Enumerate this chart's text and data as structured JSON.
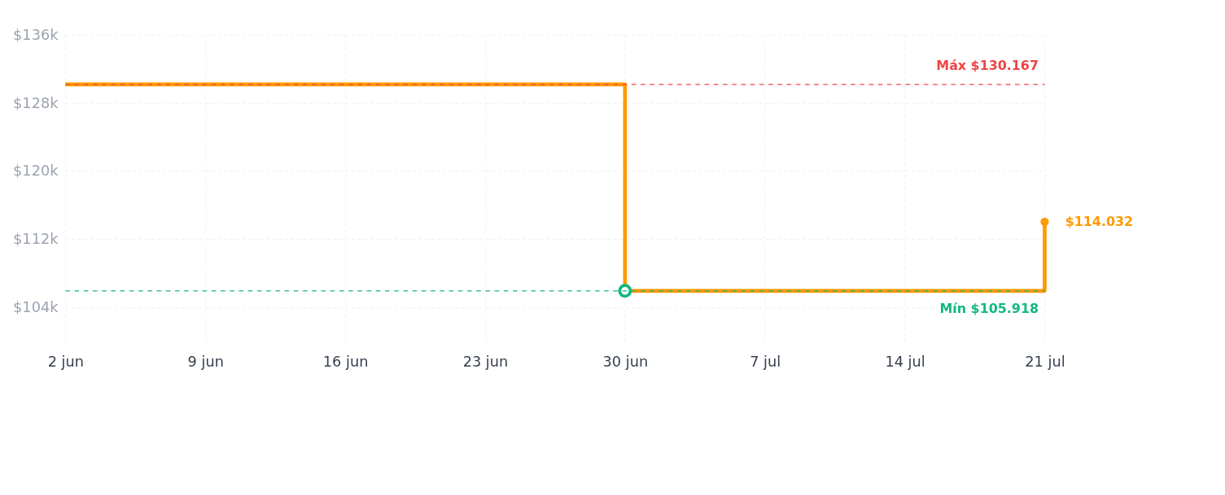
{
  "chart_data": {
    "type": "step",
    "x": [
      "--06-02",
      "--06-30",
      "--07-21"
    ],
    "series": [
      {
        "color": "#ff9900",
        "values": [
          130167,
          105918,
          114032
        ]
      },
      {
        "type": "scatter",
        "x": [
          "--06-30"
        ],
        "color": "#10b981",
        "values": [
          105918
        ],
        "marker": "circle"
      }
    ],
    "xlim": [
      "--06-02",
      "--07-21"
    ],
    "xticks": [
      {
        "value": "--06-02",
        "label": "2 jun"
      },
      {
        "value": "--06-09",
        "label": "9 jun"
      },
      {
        "value": "--06-16",
        "label": "16 jun"
      },
      {
        "value": "--06-23",
        "label": "23 jun"
      },
      {
        "value": "--06-30",
        "label": "30 jun"
      },
      {
        "value": "--07-07",
        "label": "7 jul"
      },
      {
        "value": "--07-14",
        "label": "14 jul"
      },
      {
        "value": "--07-21",
        "label": "21 jul"
      }
    ],
    "ylim": [
      99500,
      136000
    ],
    "yticks": [
      {
        "value": 104000,
        "label": "$104k"
      },
      {
        "value": 112000,
        "label": "$112k"
      },
      {
        "value": 120000,
        "label": "$120k"
      },
      {
        "value": 128000,
        "label": "$128k"
      },
      {
        "value": 136000,
        "label": "$136k"
      }
    ],
    "ref_lines": [
      {
        "axis": "y",
        "value": 130167,
        "label": "Máx $130.167",
        "color": "#ef4444",
        "line_style": "dashed"
      },
      {
        "axis": "y",
        "value": 105918,
        "label": "Mín $105.918",
        "color": "#10b981",
        "line_style": "dashed"
      }
    ],
    "annotations": [
      {
        "text": "$114.032",
        "x": "--07-21",
        "y": 114032
      }
    ],
    "grid": true,
    "legend": false,
    "marker": "none",
    "line_style": "solid"
  }
}
